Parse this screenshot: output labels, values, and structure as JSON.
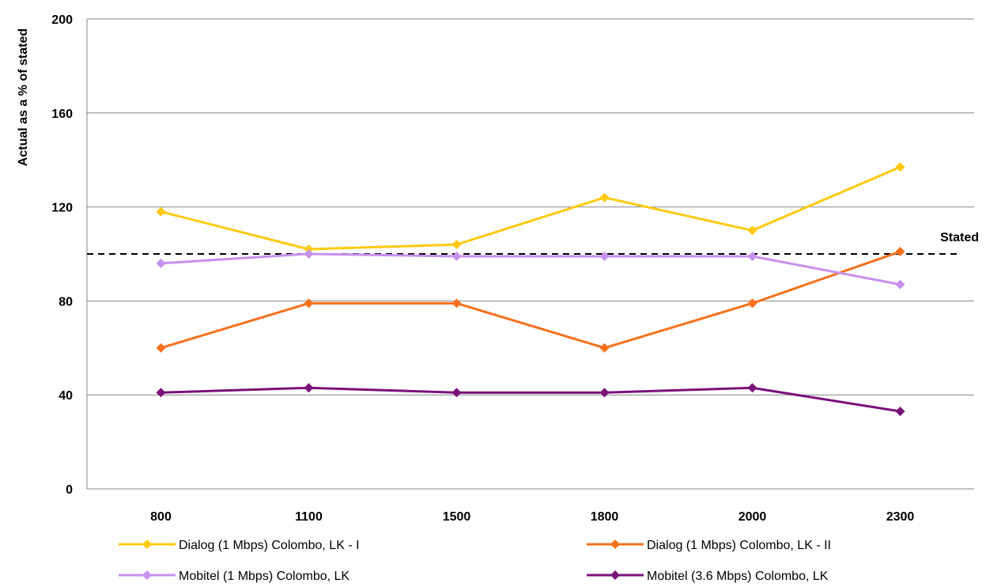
{
  "chart_data": {
    "type": "line",
    "ylabel": "Actual as a % of stated",
    "xlabel": "",
    "categories": [
      "800",
      "1100",
      "1500",
      "1800",
      "2000",
      "2300"
    ],
    "ylim": [
      0,
      200
    ],
    "yticks": [
      0,
      40,
      80,
      120,
      160,
      200
    ],
    "grid": "horizontal",
    "legend_position": "bottom",
    "reference_line": {
      "label": "Stated",
      "value": 100,
      "style": "dashed",
      "color": "#000000"
    },
    "series": [
      {
        "name": "Dialog (1 Mbps) Colombo, LK - I",
        "color": "#FFC90E",
        "values": [
          118,
          102,
          104,
          124,
          110,
          137
        ]
      },
      {
        "name": "Dialog (1 Mbps) Colombo, LK - II",
        "color": "#F7701B",
        "values": [
          60,
          79,
          79,
          60,
          79,
          101
        ]
      },
      {
        "name": "Mobitel (1 Mbps) Colombo, LK",
        "color": "#C890EE",
        "values": [
          96,
          100,
          99,
          99,
          99,
          87
        ]
      },
      {
        "name": "Mobitel (3.6 Mbps) Colombo, LK",
        "color": "#7A117A",
        "values": [
          41,
          43,
          41,
          41,
          43,
          33
        ]
      }
    ]
  }
}
